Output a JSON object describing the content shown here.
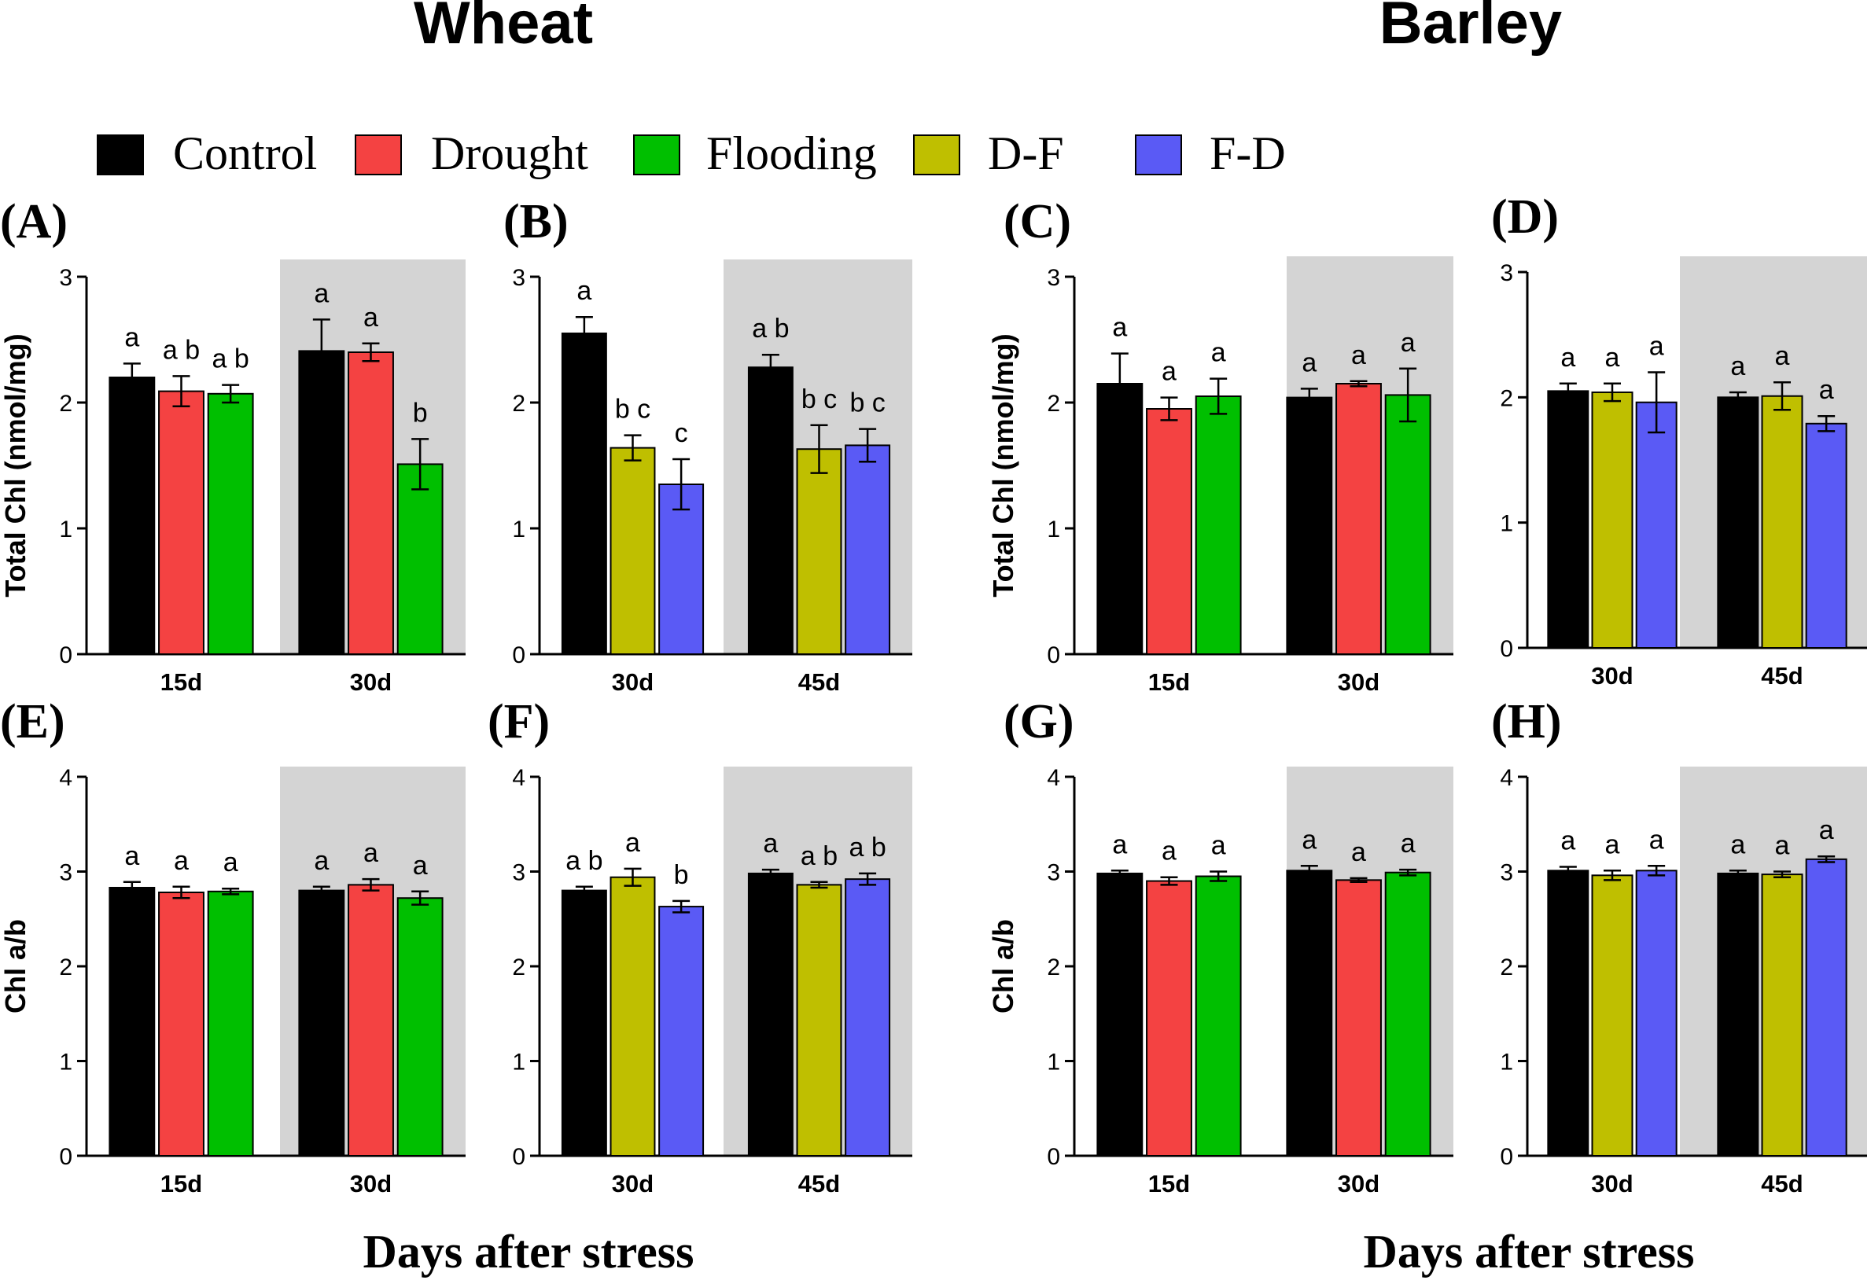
{
  "figure": {
    "titles": [
      "Wheat",
      "Barley"
    ],
    "xlabel": "Days after stress"
  },
  "legend": [
    {
      "label": "Control",
      "color": "#000000"
    },
    {
      "label": "Drought",
      "color": "#f44242"
    },
    {
      "label": "Flooding",
      "color": "#00bf00"
    },
    {
      "label": "D-F",
      "color": "#bfbf00"
    },
    {
      "label": "F-D",
      "color": "#5a5af5"
    }
  ],
  "chart_data": [
    {
      "panel": "(A)",
      "type": "bar",
      "crop": "Wheat",
      "ylabel": "Total Chl (nmol/mg)",
      "ylim": [
        0,
        3
      ],
      "yticks": [
        0,
        1,
        2,
        3
      ],
      "groups": [
        {
          "label": "15d",
          "shaded": false,
          "bars": [
            {
              "series": "Control",
              "value": 2.2,
              "err": 0.11,
              "letter": "a"
            },
            {
              "series": "Drought",
              "value": 2.09,
              "err": 0.12,
              "letter": "a b"
            },
            {
              "series": "Flooding",
              "value": 2.07,
              "err": 0.07,
              "letter": "a b"
            }
          ]
        },
        {
          "label": "30d",
          "shaded": true,
          "bars": [
            {
              "series": "Control",
              "value": 2.41,
              "err": 0.25,
              "letter": "a"
            },
            {
              "series": "Drought",
              "value": 2.4,
              "err": 0.07,
              "letter": "a"
            },
            {
              "series": "Flooding",
              "value": 1.51,
              "err": 0.2,
              "letter": "b"
            }
          ]
        }
      ]
    },
    {
      "panel": "(B)",
      "type": "bar",
      "crop": "Wheat",
      "ylabel": "",
      "ylim": [
        0,
        3
      ],
      "yticks": [
        0,
        1,
        2,
        3
      ],
      "groups": [
        {
          "label": "30d",
          "shaded": false,
          "bars": [
            {
              "series": "Control",
              "value": 2.55,
              "err": 0.13,
              "letter": "a"
            },
            {
              "series": "D-F",
              "value": 1.64,
              "err": 0.1,
              "letter": "b c"
            },
            {
              "series": "F-D",
              "value": 1.35,
              "err": 0.2,
              "letter": "c"
            }
          ]
        },
        {
          "label": "45d",
          "shaded": true,
          "bars": [
            {
              "series": "Control",
              "value": 2.28,
              "err": 0.1,
              "letter": "a b"
            },
            {
              "series": "D-F",
              "value": 1.63,
              "err": 0.19,
              "letter": "b c"
            },
            {
              "series": "F-D",
              "value": 1.66,
              "err": 0.13,
              "letter": "b c"
            }
          ]
        }
      ]
    },
    {
      "panel": "(C)",
      "type": "bar",
      "crop": "Barley",
      "ylabel": "Total Chl (nmol/mg)",
      "ylim": [
        0,
        3
      ],
      "yticks": [
        0,
        1,
        2,
        3
      ],
      "groups": [
        {
          "label": "15d",
          "shaded": false,
          "bars": [
            {
              "series": "Control",
              "value": 2.15,
              "err": 0.24,
              "letter": "a"
            },
            {
              "series": "Drought",
              "value": 1.95,
              "err": 0.09,
              "letter": "a"
            },
            {
              "series": "Flooding",
              "value": 2.05,
              "err": 0.14,
              "letter": "a"
            }
          ]
        },
        {
          "label": "30d",
          "shaded": true,
          "bars": [
            {
              "series": "Control",
              "value": 2.04,
              "err": 0.07,
              "letter": "a"
            },
            {
              "series": "Drought",
              "value": 2.15,
              "err": 0.02,
              "letter": "a"
            },
            {
              "series": "Flooding",
              "value": 2.06,
              "err": 0.21,
              "letter": "a"
            }
          ]
        }
      ]
    },
    {
      "panel": "(D)",
      "type": "bar",
      "crop": "Barley",
      "ylabel": "",
      "ylim": [
        0,
        3
      ],
      "yticks": [
        0,
        1,
        2,
        3
      ],
      "groups": [
        {
          "label": "30d",
          "shaded": false,
          "bars": [
            {
              "series": "Control",
              "value": 2.05,
              "err": 0.06,
              "letter": "a"
            },
            {
              "series": "D-F",
              "value": 2.04,
              "err": 0.07,
              "letter": "a"
            },
            {
              "series": "F-D",
              "value": 1.96,
              "err": 0.24,
              "letter": "a"
            }
          ]
        },
        {
          "label": "45d",
          "shaded": true,
          "bars": [
            {
              "series": "Control",
              "value": 2.0,
              "err": 0.04,
              "letter": "a"
            },
            {
              "series": "D-F",
              "value": 2.01,
              "err": 0.11,
              "letter": "a"
            },
            {
              "series": "F-D",
              "value": 1.79,
              "err": 0.06,
              "letter": "a"
            }
          ]
        }
      ]
    },
    {
      "panel": "(E)",
      "type": "bar",
      "crop": "Wheat",
      "ylabel": "Chl a/b",
      "ylim": [
        0,
        4
      ],
      "yticks": [
        0,
        1,
        2,
        3,
        4
      ],
      "groups": [
        {
          "label": "15d",
          "shaded": false,
          "bars": [
            {
              "series": "Control",
              "value": 2.83,
              "err": 0.06,
              "letter": "a"
            },
            {
              "series": "Drought",
              "value": 2.78,
              "err": 0.06,
              "letter": "a"
            },
            {
              "series": "Flooding",
              "value": 2.79,
              "err": 0.03,
              "letter": "a"
            }
          ]
        },
        {
          "label": "30d",
          "shaded": true,
          "bars": [
            {
              "series": "Control",
              "value": 2.8,
              "err": 0.04,
              "letter": "a"
            },
            {
              "series": "Drought",
              "value": 2.86,
              "err": 0.06,
              "letter": "a"
            },
            {
              "series": "Flooding",
              "value": 2.72,
              "err": 0.07,
              "letter": "a"
            }
          ]
        }
      ]
    },
    {
      "panel": "(F)",
      "type": "bar",
      "crop": "Wheat",
      "ylabel": "",
      "ylim": [
        0,
        4
      ],
      "yticks": [
        0,
        1,
        2,
        3,
        4
      ],
      "groups": [
        {
          "label": "30d",
          "shaded": false,
          "bars": [
            {
              "series": "Control",
              "value": 2.8,
              "err": 0.04,
              "letter": "a b"
            },
            {
              "series": "D-F",
              "value": 2.94,
              "err": 0.09,
              "letter": "a"
            },
            {
              "series": "F-D",
              "value": 2.63,
              "err": 0.06,
              "letter": "b"
            }
          ]
        },
        {
          "label": "45d",
          "shaded": true,
          "bars": [
            {
              "series": "Control",
              "value": 2.98,
              "err": 0.04,
              "letter": "a"
            },
            {
              "series": "D-F",
              "value": 2.86,
              "err": 0.03,
              "letter": "a b"
            },
            {
              "series": "F-D",
              "value": 2.92,
              "err": 0.06,
              "letter": "a b"
            }
          ]
        }
      ]
    },
    {
      "panel": "(G)",
      "type": "bar",
      "crop": "Barley",
      "ylabel": "Chl a/b",
      "ylim": [
        0,
        4
      ],
      "yticks": [
        0,
        1,
        2,
        3,
        4
      ],
      "groups": [
        {
          "label": "15d",
          "shaded": false,
          "bars": [
            {
              "series": "Control",
              "value": 2.98,
              "err": 0.03,
              "letter": "a"
            },
            {
              "series": "Drought",
              "value": 2.9,
              "err": 0.04,
              "letter": "a"
            },
            {
              "series": "Flooding",
              "value": 2.95,
              "err": 0.05,
              "letter": "a"
            }
          ]
        },
        {
          "label": "30d",
          "shaded": true,
          "bars": [
            {
              "series": "Control",
              "value": 3.01,
              "err": 0.05,
              "letter": "a"
            },
            {
              "series": "Drought",
              "value": 2.91,
              "err": 0.02,
              "letter": "a"
            },
            {
              "series": "Flooding",
              "value": 2.99,
              "err": 0.03,
              "letter": "a"
            }
          ]
        }
      ]
    },
    {
      "panel": "(H)",
      "type": "bar",
      "crop": "Barley",
      "ylabel": "",
      "ylim": [
        0,
        4
      ],
      "yticks": [
        0,
        1,
        2,
        3,
        4
      ],
      "groups": [
        {
          "label": "30d",
          "shaded": false,
          "bars": [
            {
              "series": "Control",
              "value": 3.01,
              "err": 0.04,
              "letter": "a"
            },
            {
              "series": "D-F",
              "value": 2.96,
              "err": 0.05,
              "letter": "a"
            },
            {
              "series": "F-D",
              "value": 3.01,
              "err": 0.05,
              "letter": "a"
            }
          ]
        },
        {
          "label": "45d",
          "shaded": true,
          "bars": [
            {
              "series": "Control",
              "value": 2.98,
              "err": 0.03,
              "letter": "a"
            },
            {
              "series": "D-F",
              "value": 2.97,
              "err": 0.03,
              "letter": "a"
            },
            {
              "series": "F-D",
              "value": 3.13,
              "err": 0.03,
              "letter": "a"
            }
          ]
        }
      ]
    }
  ]
}
